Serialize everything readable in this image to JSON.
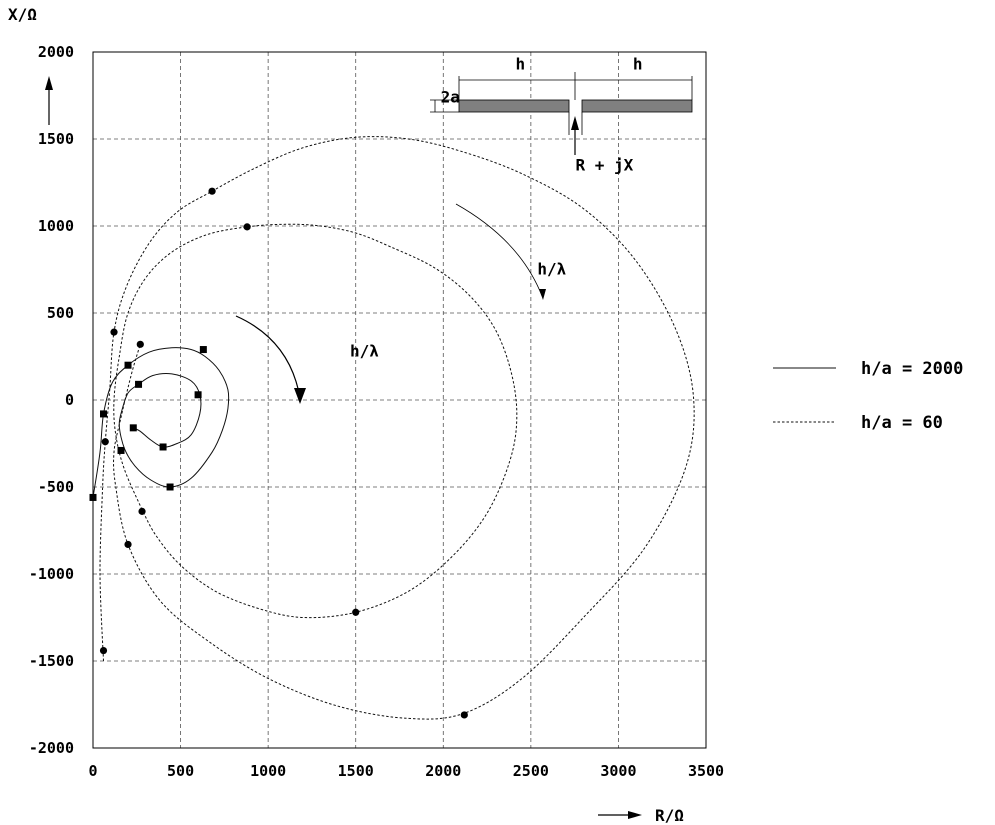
{
  "chart_data": {
    "type": "line",
    "xlabel": "R/Ω",
    "ylabel": "X/Ω",
    "xlim": [
      0,
      3500
    ],
    "ylim": [
      -2000,
      2000
    ],
    "xticks": [
      0,
      500,
      1000,
      1500,
      2000,
      2500,
      3000,
      3500
    ],
    "yticks": [
      2000,
      1500,
      1000,
      500,
      0,
      -500,
      -1000,
      -1500,
      -2000
    ],
    "grid": true,
    "legend_placement": "right",
    "series": [
      {
        "name": "h/a = 2000",
        "style": "solid",
        "marker": "square",
        "curve": [
          [
            0,
            -560
          ],
          [
            40,
            -300
          ],
          [
            60,
            -80
          ],
          [
            110,
            100
          ],
          [
            200,
            200
          ],
          [
            320,
            275
          ],
          [
            450,
            300
          ],
          [
            560,
            290
          ],
          [
            640,
            250
          ],
          [
            720,
            170
          ],
          [
            770,
            60
          ],
          [
            770,
            -50
          ],
          [
            740,
            -170
          ],
          [
            680,
            -300
          ],
          [
            560,
            -450
          ],
          [
            440,
            -500
          ],
          [
            330,
            -460
          ],
          [
            240,
            -380
          ],
          [
            180,
            -280
          ],
          [
            150,
            -150
          ],
          [
            165,
            -60
          ],
          [
            200,
            40
          ],
          [
            260,
            90
          ],
          [
            340,
            140
          ],
          [
            450,
            150
          ],
          [
            560,
            110
          ],
          [
            610,
            30
          ],
          [
            610,
            -80
          ],
          [
            560,
            -200
          ],
          [
            480,
            -250
          ],
          [
            400,
            -270
          ],
          [
            330,
            -230
          ],
          [
            270,
            -180
          ],
          [
            230,
            -160
          ]
        ],
        "markers": [
          [
            0,
            -560
          ],
          [
            60,
            -80
          ],
          [
            200,
            200
          ],
          [
            630,
            290
          ],
          [
            600,
            30
          ],
          [
            440,
            -500
          ],
          [
            160,
            -290
          ],
          [
            260,
            90
          ],
          [
            230,
            -160
          ],
          [
            400,
            -270
          ]
        ]
      },
      {
        "name": "h/a = 60",
        "style": "dashed",
        "marker": "circle",
        "curve_outer": [
          [
            60,
            -1500
          ],
          [
            40,
            -1000
          ],
          [
            55,
            -500
          ],
          [
            70,
            -240
          ],
          [
            95,
            50
          ],
          [
            120,
            390
          ],
          [
            190,
            650
          ],
          [
            320,
            900
          ],
          [
            480,
            1080
          ],
          [
            680,
            1200
          ],
          [
            920,
            1330
          ],
          [
            1200,
            1450
          ],
          [
            1500,
            1510
          ],
          [
            1800,
            1500
          ],
          [
            2100,
            1430
          ],
          [
            2450,
            1300
          ],
          [
            2800,
            1100
          ],
          [
            3100,
            800
          ],
          [
            3330,
            400
          ],
          [
            3430,
            0
          ],
          [
            3380,
            -400
          ],
          [
            3150,
            -850
          ],
          [
            2800,
            -1250
          ],
          [
            2450,
            -1600
          ],
          [
            2120,
            -1800
          ],
          [
            1800,
            -1830
          ],
          [
            1400,
            -1760
          ],
          [
            1000,
            -1600
          ],
          [
            650,
            -1380
          ],
          [
            380,
            -1150
          ],
          [
            200,
            -830
          ],
          [
            130,
            -500
          ],
          [
            120,
            -300
          ],
          [
            160,
            -100
          ],
          [
            220,
            150
          ],
          [
            270,
            320
          ]
        ],
        "curve_inner": [
          [
            280,
            -630
          ],
          [
            180,
            -400
          ],
          [
            130,
            -200
          ],
          [
            120,
            0
          ],
          [
            150,
            250
          ],
          [
            200,
            500
          ],
          [
            300,
            700
          ],
          [
            450,
            850
          ],
          [
            650,
            950
          ],
          [
            880,
            995
          ],
          [
            1100,
            1010
          ],
          [
            1300,
            1000
          ],
          [
            1500,
            960
          ],
          [
            1700,
            880
          ],
          [
            1950,
            760
          ],
          [
            2150,
            600
          ],
          [
            2300,
            400
          ],
          [
            2390,
            150
          ],
          [
            2420,
            -100
          ],
          [
            2380,
            -350
          ],
          [
            2250,
            -650
          ],
          [
            2050,
            -900
          ],
          [
            1800,
            -1100
          ],
          [
            1500,
            -1220
          ],
          [
            1200,
            -1250
          ],
          [
            950,
            -1200
          ],
          [
            700,
            -1100
          ],
          [
            500,
            -950
          ],
          [
            360,
            -780
          ],
          [
            280,
            -630
          ]
        ],
        "markers": [
          [
            60,
            -1440
          ],
          [
            200,
            -830
          ],
          [
            280,
            -640
          ],
          [
            70,
            -240
          ],
          [
            120,
            390
          ],
          [
            270,
            320
          ],
          [
            680,
            1200
          ],
          [
            880,
            995
          ],
          [
            1500,
            -1220
          ],
          [
            2120,
            -1810
          ]
        ]
      }
    ],
    "annotations": [
      {
        "text": "h/λ",
        "at": [
          1550,
          250
        ]
      },
      {
        "text": "h/λ",
        "at": [
          2620,
          720
        ]
      },
      {
        "text": "R + jX",
        "at": [
          2920,
          1320
        ]
      },
      {
        "text": "2a",
        "at": [
          2040,
          1710
        ]
      },
      {
        "text": "h",
        "at": [
          2440,
          1900
        ]
      },
      {
        "text": "h",
        "at": [
          3110,
          1900
        ]
      }
    ]
  }
}
